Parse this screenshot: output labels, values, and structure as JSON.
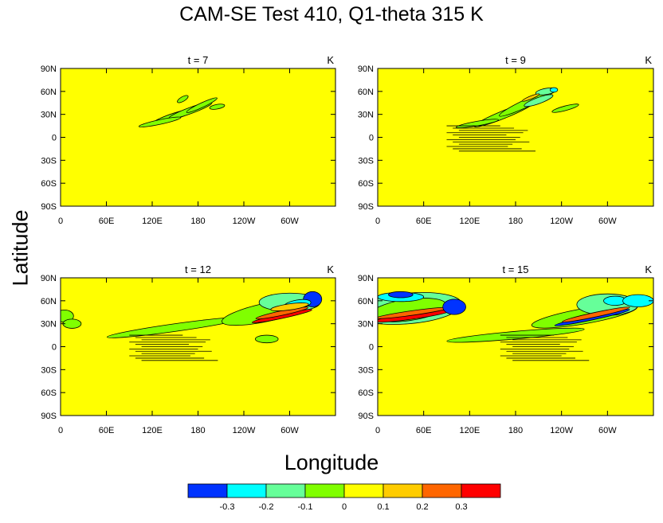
{
  "title": "CAM-SE Test 410, Q1-theta 315 K",
  "xlabel": "Longitude",
  "ylabel": "Latitude",
  "colors": {
    "background_field": "#ffff00",
    "contour": "#000000"
  },
  "chart_data": {
    "type": "heatmap",
    "title": "CAM-SE Test 410, Q1-theta 315 K",
    "xlabel": "Longitude",
    "ylabel": "Latitude",
    "x_ticks": [
      "0",
      "60E",
      "120E",
      "180",
      "120W",
      "60W"
    ],
    "y_ticks": [
      "90N",
      "60N",
      "30N",
      "0",
      "30S",
      "60S",
      "90S"
    ],
    "xlim": [
      0,
      360
    ],
    "ylim": [
      -90,
      90
    ],
    "panels": [
      {
        "label": "t = 7",
        "units": "K"
      },
      {
        "label": "t = 9",
        "units": "K"
      },
      {
        "label": "t = 12",
        "units": "K"
      },
      {
        "label": "t = 15",
        "units": "K"
      }
    ],
    "colorbar": {
      "levels": [
        "-0.3",
        "-0.2",
        "-0.1",
        "0",
        "0.1",
        "0.2",
        "0.3"
      ],
      "colors": [
        "#0033ff",
        "#00ffff",
        "#66ff99",
        "#80ff00",
        "#ffff00",
        "#ffcc00",
        "#ff6600",
        "#ff0000"
      ]
    }
  }
}
